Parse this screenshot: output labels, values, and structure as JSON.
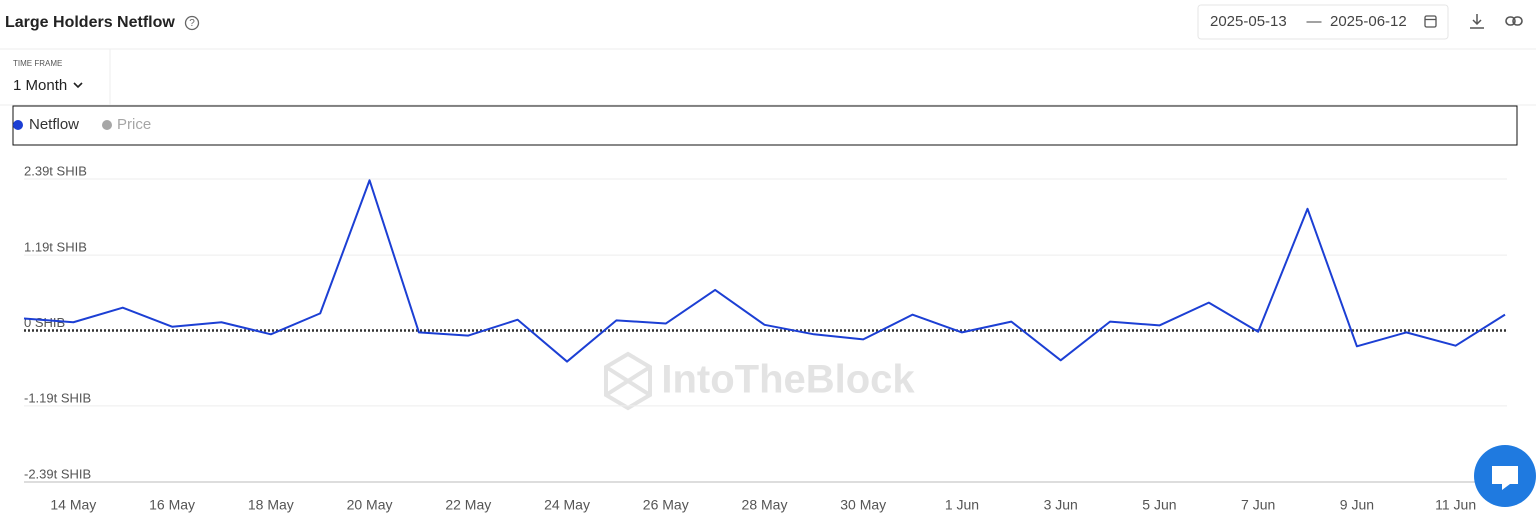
{
  "header": {
    "title": "Large Holders Netflow",
    "date_from": "2025-05-13",
    "date_separator": "—",
    "date_to": "2025-06-12"
  },
  "timeframe": {
    "label": "TIME FRAME",
    "value": "1 Month"
  },
  "watermark": "IntoTheBlock",
  "chart_data": {
    "type": "line",
    "categories": [
      null,
      "14 May",
      null,
      "16 May",
      null,
      "18 May",
      null,
      "20 May",
      null,
      "22 May",
      null,
      "24 May",
      null,
      "26 May",
      null,
      "28 May",
      null,
      "30 May",
      null,
      "1 Jun",
      null,
      "3 Jun",
      null,
      "5 Jun",
      null,
      "7 Jun",
      null,
      "9 Jun",
      null,
      "11 Jun",
      null
    ],
    "series": [
      {
        "name": "Netflow",
        "color": "#1c3fd4",
        "values": [
          0.19,
          0.13,
          0.36,
          0.06,
          0.13,
          -0.06,
          0.27,
          2.37,
          -0.03,
          -0.08,
          0.17,
          -0.49,
          0.16,
          0.11,
          0.64,
          0.09,
          -0.06,
          -0.14,
          0.25,
          -0.03,
          0.14,
          -0.47,
          0.14,
          0.08,
          0.44,
          -0.02,
          1.92,
          -0.25,
          -0.03,
          -0.24,
          0.25
        ]
      }
    ],
    "inactive_series": [
      {
        "name": "Price",
        "color": "#a6a6a6"
      }
    ],
    "ylim": [
      -2.39,
      2.39
    ],
    "yticks": [
      {
        "value": 2.39,
        "label": "2.39t SHIB"
      },
      {
        "value": 1.19,
        "label": "1.19t SHIB"
      },
      {
        "value": 0,
        "label": "0 SHIB"
      },
      {
        "value": -1.19,
        "label": "-1.19t SHIB"
      },
      {
        "value": -2.39,
        "label": "-2.39t SHIB"
      }
    ],
    "grid": true
  }
}
